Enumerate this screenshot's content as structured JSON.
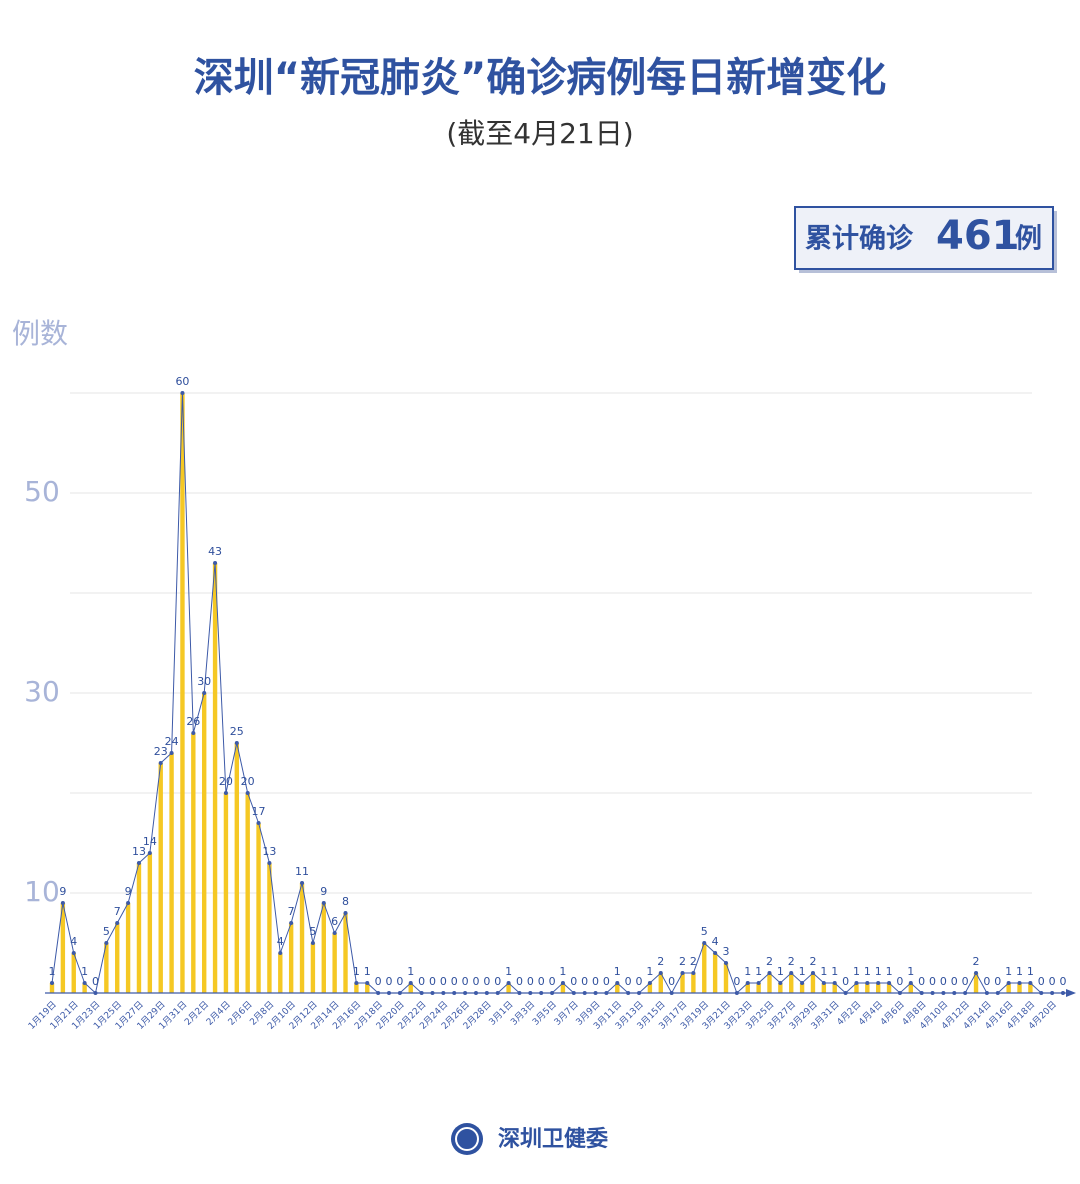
{
  "chart_data": {
    "type": "bar",
    "title": "深圳“新冠肺炎”确诊病例每日新增变化",
    "subtitle": "(截至4月21日)",
    "total_label": "累计确诊",
    "total": 461,
    "total_unit": "例",
    "y_label": "例数",
    "source": "深圳卫健委",
    "categories": [
      "1月19日",
      null,
      "1月21日",
      null,
      "1月23日",
      null,
      "1月25日",
      null,
      "1月27日",
      null,
      "1月29日",
      null,
      "1月31日",
      null,
      "2月2日",
      null,
      "2月4日",
      null,
      "2月6日",
      null,
      "2月8日",
      null,
      "2月10日",
      null,
      "2月12日",
      null,
      "2月14日",
      null,
      "2月16日",
      null,
      "2月18日",
      null,
      "2月20日",
      null,
      "2月22日",
      null,
      "2月24日",
      null,
      "2月26日",
      null,
      "2月28日",
      null,
      "3月1日",
      null,
      "3月3日",
      null,
      "3月5日",
      null,
      "3月7日",
      null,
      "3月9日",
      null,
      "3月11日",
      null,
      "3月13日",
      null,
      "3月15日",
      null,
      "3月17日",
      null,
      "3月19日",
      null,
      "3月21日",
      null,
      "3月23日",
      null,
      "3月25日",
      null,
      "3月27日",
      null,
      "3月29日",
      null,
      "3月31日",
      null,
      "4月2日",
      null,
      "4月4日",
      null,
      "4月6日",
      null,
      "4月8日",
      null,
      "4月10日",
      null,
      "4月12日",
      null,
      "4月14日",
      null,
      "4月16日",
      null,
      "4月18日",
      null,
      "4月20日",
      null
    ],
    "values": [
      1,
      9,
      4,
      1,
      0,
      5,
      7,
      9,
      13,
      14,
      23,
      24,
      60,
      26,
      30,
      43,
      20,
      25,
      20,
      17,
      13,
      4,
      7,
      11,
      5,
      9,
      6,
      8,
      1,
      1,
      0,
      0,
      0,
      1,
      0,
      0,
      0,
      0,
      0,
      0,
      0,
      0,
      1,
      0,
      0,
      0,
      0,
      1,
      0,
      0,
      0,
      0,
      1,
      0,
      0,
      1,
      2,
      0,
      2,
      2,
      5,
      4,
      3,
      0,
      1,
      1,
      2,
      1,
      2,
      1,
      2,
      1,
      1,
      0,
      1,
      1,
      1,
      1,
      0,
      1,
      0,
      0,
      0,
      0,
      0,
      2,
      0,
      0,
      1,
      1,
      1,
      0,
      0,
      0
    ],
    "color": "#f5c824",
    "line_color": "#3d5aa8",
    "ylim": [
      0,
      60
    ],
    "yticks": [
      10,
      30,
      50
    ],
    "gridlines": [
      10,
      20,
      30,
      40,
      50,
      60
    ],
    "grid": true
  }
}
